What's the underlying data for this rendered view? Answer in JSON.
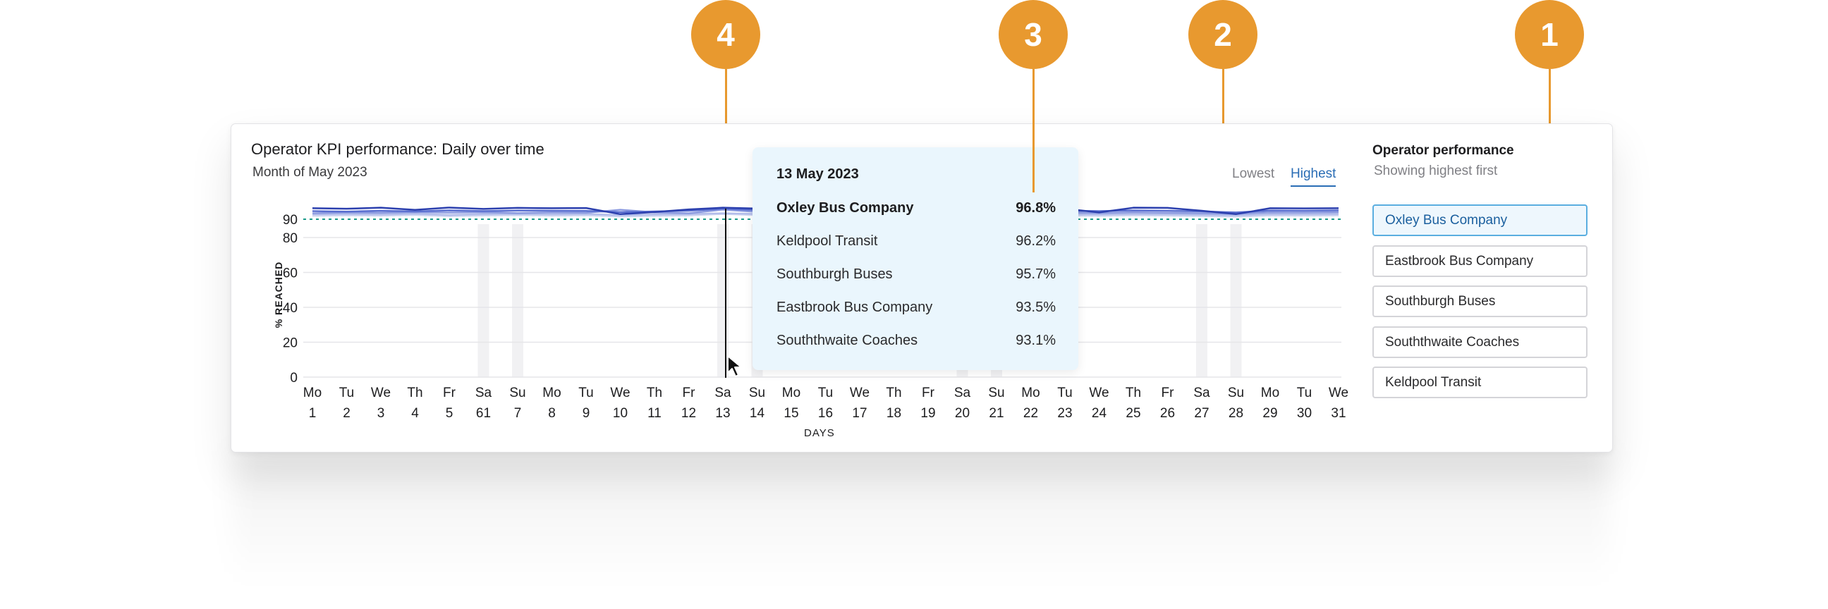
{
  "callouts": [
    "4",
    "3",
    "2",
    "1"
  ],
  "chart": {
    "title": "Operator KPI performance: Daily over time",
    "subtitle": "Month of May 2023",
    "ylabel": "% REACHED",
    "xlabel": "DAYS",
    "sort_options": {
      "lowest": "Lowest",
      "highest": "Highest",
      "selected": "Highest"
    }
  },
  "tooltip": {
    "date": "13 May 2023",
    "rows": [
      {
        "name": "Oxley Bus Company",
        "value": "96.8%"
      },
      {
        "name": "Keldpool Transit",
        "value": "96.2%"
      },
      {
        "name": "Southburgh Buses",
        "value": "95.7%"
      },
      {
        "name": "Eastbrook Bus Company",
        "value": "93.5%"
      },
      {
        "name": "Souththwaite Coaches",
        "value": "93.1%"
      }
    ]
  },
  "sidebar": {
    "title": "Operator performance",
    "subtitle": "Showing highest first",
    "operators": [
      {
        "label": "Oxley Bus Company",
        "active": true
      },
      {
        "label": "Eastbrook Bus Company",
        "active": false
      },
      {
        "label": "Southburgh Buses",
        "active": false
      },
      {
        "label": "Souththwaite Coaches",
        "active": false
      },
      {
        "label": "Keldpool Transit",
        "active": false
      }
    ]
  },
  "chart_data": {
    "type": "line",
    "ylim": [
      0,
      100
    ],
    "yticks": [
      0,
      20,
      40,
      60,
      80,
      90
    ],
    "target": 90,
    "target_color": "#1a9a8a",
    "grid": true,
    "x_days": [
      "Mo",
      "Tu",
      "We",
      "Th",
      "Fr",
      "Sa",
      "Su",
      "Mo",
      "Tu",
      "We",
      "Th",
      "Fr",
      "Sa",
      "Su",
      "Mo",
      "Tu",
      "We",
      "Th",
      "Fr",
      "Sa",
      "Su",
      "Mo",
      "Tu",
      "We",
      "Th",
      "Fr",
      "Sa",
      "Su",
      "Mo",
      "Tu",
      "We"
    ],
    "x_dates": [
      "1",
      "2",
      "3",
      "4",
      "5",
      "61",
      "7",
      "8",
      "9",
      "10",
      "11",
      "12",
      "13",
      "14",
      "15",
      "16",
      "17",
      "18",
      "19",
      "20",
      "21",
      "22",
      "23",
      "24",
      "25",
      "26",
      "27",
      "28",
      "29",
      "30",
      "31"
    ],
    "weekend_indices": [
      5,
      6,
      12,
      13,
      19,
      20,
      26,
      27
    ],
    "hover_index": 12,
    "series": [
      {
        "name": "Oxley Bus Company",
        "color": "#2b3fae",
        "values": [
          96.5,
          96.2,
          96.8,
          95.5,
          96.9,
          96.1,
          96.7,
          96.5,
          96.6,
          93.0,
          94.2,
          95.8,
          96.8,
          96.3,
          95.1,
          96.2,
          96.0,
          95.8,
          96.5,
          96.1,
          95.4,
          95.0,
          96.2,
          94.0,
          96.8,
          96.7,
          95.0,
          93.0,
          96.5,
          96.4,
          96.5
        ]
      },
      {
        "name": "Keldpool Transit",
        "color": "#5a6fd0",
        "values": [
          94.8,
          94.5,
          95.0,
          94.6,
          95.2,
          94.8,
          95.1,
          95.0,
          94.9,
          94.2,
          94.6,
          95.0,
          96.2,
          95.4,
          94.8,
          95.1,
          94.9,
          94.7,
          95.0,
          94.8,
          94.5,
          94.6,
          95.0,
          94.8,
          95.2,
          95.0,
          94.6,
          94.0,
          95.1,
          95.0,
          95.2
        ]
      },
      {
        "name": "Southburgh Buses",
        "color": "#8c9be0",
        "values": [
          93.5,
          94.0,
          93.8,
          94.2,
          93.9,
          94.1,
          93.6,
          94.0,
          93.8,
          95.6,
          94.0,
          93.5,
          95.7,
          94.3,
          93.9,
          94.0,
          93.7,
          94.1,
          93.8,
          94.2,
          93.9,
          93.7,
          94.0,
          93.6,
          94.1,
          93.8,
          93.5,
          93.2,
          94.0,
          93.9,
          94.1
        ]
      },
      {
        "name": "Eastbrook Bus Company",
        "color": "#b3bdea",
        "values": [
          92.9,
          93.1,
          92.8,
          93.3,
          92.5,
          93.0,
          93.2,
          92.9,
          93.1,
          92.4,
          92.8,
          93.0,
          93.5,
          93.1,
          92.8,
          93.0,
          92.9,
          93.2,
          92.7,
          93.0,
          92.8,
          92.6,
          93.0,
          92.8,
          93.1,
          92.9,
          92.6,
          92.3,
          93.0,
          92.9,
          93.0
        ]
      },
      {
        "name": "Souththwaite Coaches",
        "color": "#d0d6f2",
        "values": [
          92.0,
          92.3,
          92.1,
          92.5,
          91.8,
          92.2,
          92.4,
          92.1,
          92.3,
          91.6,
          92.0,
          92.2,
          93.1,
          92.4,
          92.0,
          92.2,
          92.1,
          92.4,
          91.9,
          92.2,
          92.0,
          91.8,
          92.2,
          92.0,
          92.3,
          92.1,
          91.8,
          91.5,
          92.2,
          92.1,
          92.2
        ]
      }
    ]
  }
}
